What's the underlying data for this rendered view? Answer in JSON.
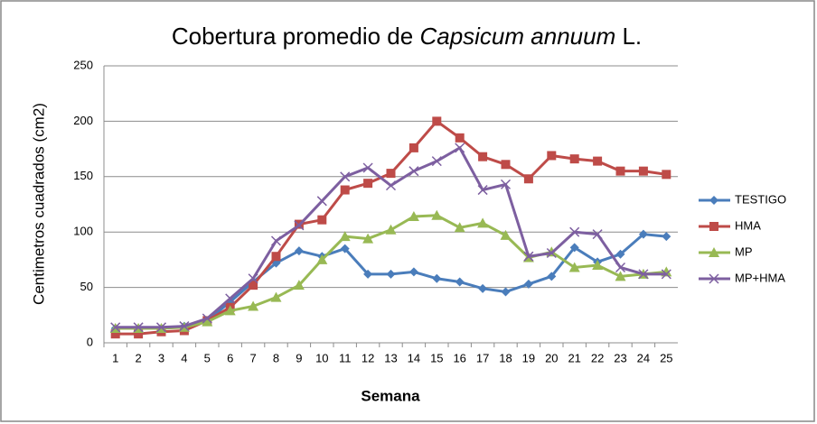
{
  "chart_data": {
    "type": "line",
    "title": [
      "Cobertura promedio de ",
      "Capsicum annuum",
      " L."
    ],
    "x_label": "Semana",
    "y_label": "Centimetros cuadrados (cm2)",
    "categories": [
      "1",
      "2",
      "3",
      "4",
      "5",
      "6",
      "7",
      "8",
      "9",
      "10",
      "11",
      "12",
      "13",
      "14",
      "15",
      "16",
      "17",
      "18",
      "19",
      "20",
      "21",
      "22",
      "23",
      "24",
      "25"
    ],
    "series": [
      {
        "name": "TESTIGO",
        "color": "#4a7dbb",
        "marker": "diamond",
        "values": [
          13,
          13,
          13,
          15,
          20,
          37,
          55,
          72,
          83,
          78,
          85,
          62,
          62,
          64,
          58,
          55,
          49,
          46,
          53,
          60,
          86,
          73,
          80,
          98,
          96
        ]
      },
      {
        "name": "HMA",
        "color": "#be4b48",
        "marker": "square",
        "values": [
          8,
          8,
          10,
          11,
          20,
          32,
          52,
          78,
          107,
          111,
          138,
          144,
          153,
          176,
          200,
          185,
          168,
          161,
          148,
          169,
          166,
          164,
          155,
          155,
          152
        ]
      },
      {
        "name": "MP",
        "color": "#98b954",
        "marker": "triangle",
        "values": [
          13,
          13,
          13,
          14,
          19,
          29,
          33,
          41,
          52,
          75,
          96,
          94,
          102,
          114,
          115,
          104,
          108,
          97,
          77,
          82,
          68,
          70,
          60,
          62,
          64
        ]
      },
      {
        "name": "MP+HMA",
        "color": "#7d5fa0",
        "marker": "x",
        "values": [
          14,
          14,
          14,
          15,
          22,
          40,
          58,
          92,
          106,
          128,
          150,
          158,
          142,
          155,
          164,
          176,
          138,
          143,
          78,
          81,
          100,
          98,
          68,
          62,
          62
        ]
      }
    ],
    "ylim": [
      0,
      250
    ],
    "yticks": [
      0,
      50,
      100,
      150,
      200,
      250
    ],
    "grid": true,
    "legend": "right"
  }
}
